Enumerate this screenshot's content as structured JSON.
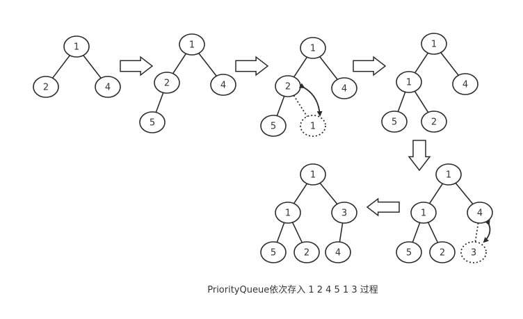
{
  "caption": "PriorityQueue依次存入 1 2 4 5 1 3 过程",
  "diagram": {
    "steps": [
      {
        "nodes": [
          "1",
          "2",
          "4"
        ],
        "dotted_nodes": []
      },
      {
        "nodes": [
          "1",
          "2",
          "4",
          "5"
        ],
        "dotted_nodes": []
      },
      {
        "nodes": [
          "1",
          "2",
          "4",
          "5"
        ],
        "dotted_nodes": [
          "1"
        ]
      },
      {
        "nodes": [
          "1",
          "1",
          "4",
          "5",
          "2"
        ],
        "dotted_nodes": []
      },
      {
        "nodes": [
          "1",
          "1",
          "4",
          "5",
          "2"
        ],
        "dotted_nodes": [
          "3"
        ]
      },
      {
        "nodes": [
          "1",
          "1",
          "3",
          "5",
          "2",
          "4"
        ],
        "dotted_nodes": []
      }
    ],
    "arrow_directions": [
      "right",
      "right",
      "right",
      "down",
      "left"
    ],
    "colors": {
      "stroke": "#2b2b2b",
      "fill": "#ffffff",
      "text": "#333333"
    }
  }
}
